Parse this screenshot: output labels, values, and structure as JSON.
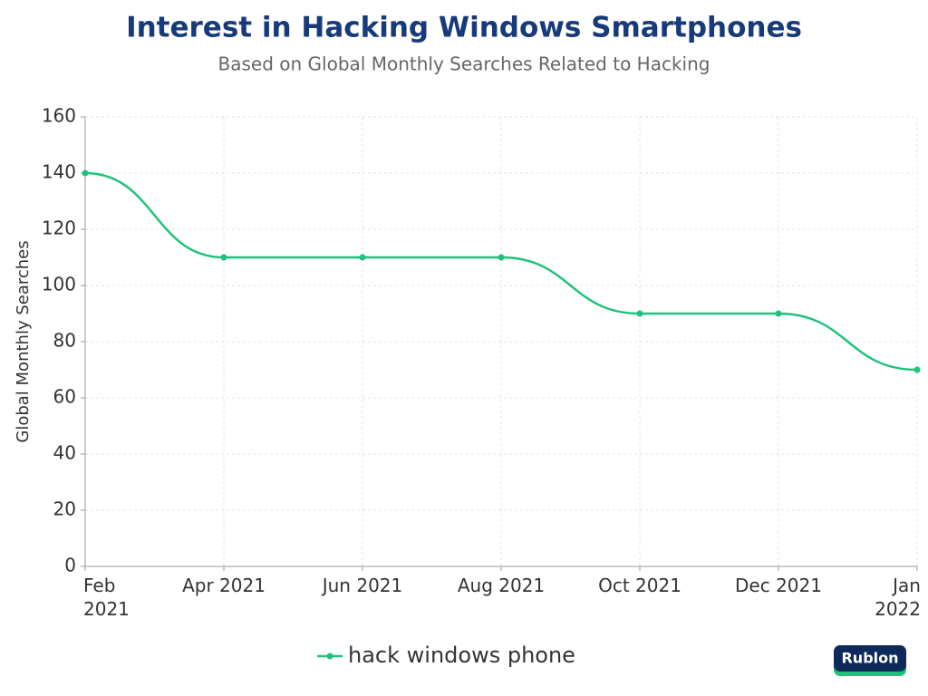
{
  "chart_data": {
    "type": "line",
    "title": "Interest in Hacking Windows Smartphones",
    "subtitle": "Based on Global Monthly Searches Related to Hacking",
    "y_label": "Global Monthly Searches",
    "categories": [
      "Feb 2021",
      "Apr 2021",
      "Jun 2021",
      "Aug 2021",
      "Oct 2021",
      "Dec 2021",
      "Jan 2022"
    ],
    "series": [
      {
        "name": "hack windows phone",
        "color": "#1ec27a",
        "values": [
          140,
          110,
          110,
          110,
          90,
          90,
          70
        ]
      }
    ],
    "ylim": [
      0,
      160
    ],
    "yticks": [
      0,
      20,
      40,
      60,
      80,
      100,
      120,
      140,
      160
    ],
    "grid": true,
    "legend": "bottom"
  },
  "logo": "Rublon"
}
